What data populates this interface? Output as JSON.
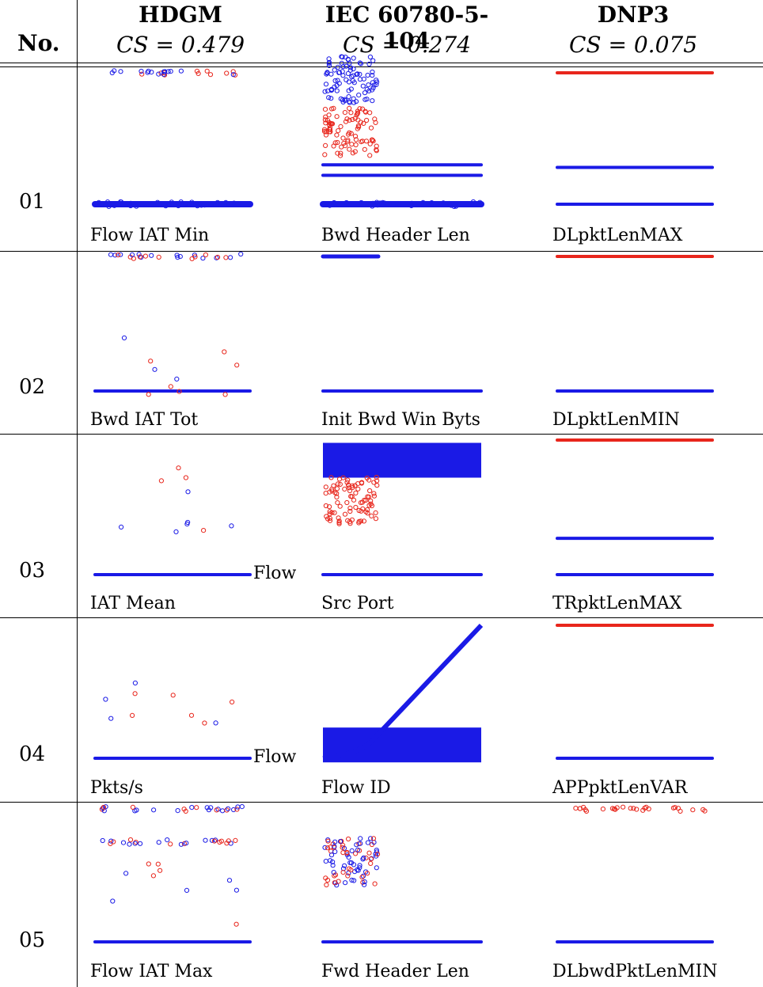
{
  "header": {
    "no_label": "No.",
    "columns": [
      {
        "name": "HDGM",
        "cs": "CS = 0.479"
      },
      {
        "name": "IEC 60780-5-104",
        "cs": "CS = 0.274"
      },
      {
        "name": "DNP3",
        "cs": "CS = 0.075"
      }
    ]
  },
  "rows": [
    {
      "no": "01",
      "features": [
        "Flow IAT Min",
        "Bwd Header Len",
        "DLpktLenMAX"
      ],
      "tags": [
        "",
        "",
        ""
      ]
    },
    {
      "no": "02",
      "features": [
        "Bwd IAT Tot",
        "Init Bwd Win Byts",
        "DLpktLenMIN"
      ],
      "tags": [
        "",
        "",
        ""
      ]
    },
    {
      "no": "03",
      "features": [
        "IAT Mean",
        "Src Port",
        "TRpktLenMAX"
      ],
      "tags": [
        "Flow",
        "",
        ""
      ]
    },
    {
      "no": "04",
      "features": [
        "Pkts/s",
        "Flow ID",
        "APPpktLenVAR"
      ],
      "tags": [
        "Flow",
        "",
        ""
      ]
    },
    {
      "no": "05",
      "features": [
        "Flow IAT Max",
        "Fwd Header Len",
        "DLbwdPktLenMIN"
      ],
      "tags": [
        "",
        "",
        ""
      ]
    }
  ],
  "colors": {
    "class_red": "#e8261c",
    "class_blue": "#1a1ae6"
  },
  "chart_data": {
    "type": "scatter",
    "note_series": [
      "red",
      "blue"
    ],
    "panels": [
      {
        "row": "01",
        "col": "HDGM",
        "bands": [
          {
            "y": 1.0,
            "color": "mixed",
            "kind": "scattered"
          },
          {
            "y": 0.0,
            "color": "blue",
            "kind": "dense-line"
          }
        ]
      },
      {
        "row": "01",
        "col": "IEC 60780-5-104",
        "bands": [
          {
            "y": 0.95,
            "color": "blue",
            "kind": "cluster-left"
          },
          {
            "y": 0.55,
            "color": "red",
            "kind": "cluster-left"
          },
          {
            "y": 0.3,
            "color": "blue",
            "kind": "line"
          },
          {
            "y": 0.22,
            "color": "blue",
            "kind": "line"
          },
          {
            "y": 0.0,
            "color": "blue",
            "kind": "dense-line"
          }
        ]
      },
      {
        "row": "01",
        "col": "DNP3",
        "bands": [
          {
            "y": 1.0,
            "color": "red",
            "kind": "line"
          },
          {
            "y": 0.28,
            "color": "blue",
            "kind": "line"
          },
          {
            "y": 0.0,
            "color": "blue",
            "kind": "line"
          }
        ]
      },
      {
        "row": "02",
        "col": "HDGM",
        "bands": [
          {
            "y": 1.0,
            "color": "mixed",
            "kind": "scattered"
          },
          {
            "y": 0.0,
            "color": "blue",
            "kind": "line"
          }
        ]
      },
      {
        "row": "02",
        "col": "IEC 60780-5-104",
        "bands": [
          {
            "y": 1.0,
            "color": "blue",
            "kind": "short-line"
          },
          {
            "y": 0.0,
            "color": "blue",
            "kind": "line"
          }
        ]
      },
      {
        "row": "02",
        "col": "DNP3",
        "bands": [
          {
            "y": 1.0,
            "color": "red",
            "kind": "line"
          },
          {
            "y": 0.0,
            "color": "blue",
            "kind": "line"
          }
        ]
      },
      {
        "row": "03",
        "col": "HDGM",
        "bands": [
          {
            "y": 0.0,
            "color": "blue",
            "kind": "line"
          }
        ]
      },
      {
        "row": "03",
        "col": "IEC 60780-5-104",
        "bands": [
          {
            "y": 0.85,
            "color": "blue",
            "kind": "dense-block"
          },
          {
            "y": 0.55,
            "color": "red",
            "kind": "cluster-left"
          },
          {
            "y": 0.0,
            "color": "blue",
            "kind": "line"
          }
        ]
      },
      {
        "row": "03",
        "col": "DNP3",
        "bands": [
          {
            "y": 1.0,
            "color": "red",
            "kind": "line"
          },
          {
            "y": 0.27,
            "color": "blue",
            "kind": "line"
          },
          {
            "y": 0.0,
            "color": "blue",
            "kind": "line"
          }
        ]
      },
      {
        "row": "04",
        "col": "HDGM",
        "bands": [
          {
            "y": 0.0,
            "color": "blue",
            "kind": "line"
          }
        ]
      },
      {
        "row": "04",
        "col": "IEC 60780-5-104",
        "bands": [
          {
            "y": 0.1,
            "color": "blue",
            "kind": "dense-block"
          },
          {
            "y": 1.0,
            "color": "blue",
            "kind": "diagonal"
          }
        ]
      },
      {
        "row": "04",
        "col": "DNP3",
        "bands": [
          {
            "y": 1.0,
            "color": "red",
            "kind": "line"
          },
          {
            "y": 0.0,
            "color": "blue",
            "kind": "line"
          }
        ]
      },
      {
        "row": "05",
        "col": "HDGM",
        "bands": [
          {
            "y": 1.0,
            "color": "mixed",
            "kind": "scattered"
          },
          {
            "y": 0.75,
            "color": "mixed",
            "kind": "scattered"
          },
          {
            "y": 0.0,
            "color": "blue",
            "kind": "line"
          }
        ]
      },
      {
        "row": "05",
        "col": "IEC 60780-5-104",
        "bands": [
          {
            "y": 0.6,
            "color": "mixed",
            "kind": "cluster-left"
          },
          {
            "y": 0.0,
            "color": "blue",
            "kind": "line"
          }
        ]
      },
      {
        "row": "05",
        "col": "DNP3",
        "bands": [
          {
            "y": 1.0,
            "color": "red",
            "kind": "scattered"
          },
          {
            "y": 0.0,
            "color": "blue",
            "kind": "line"
          }
        ]
      }
    ]
  }
}
